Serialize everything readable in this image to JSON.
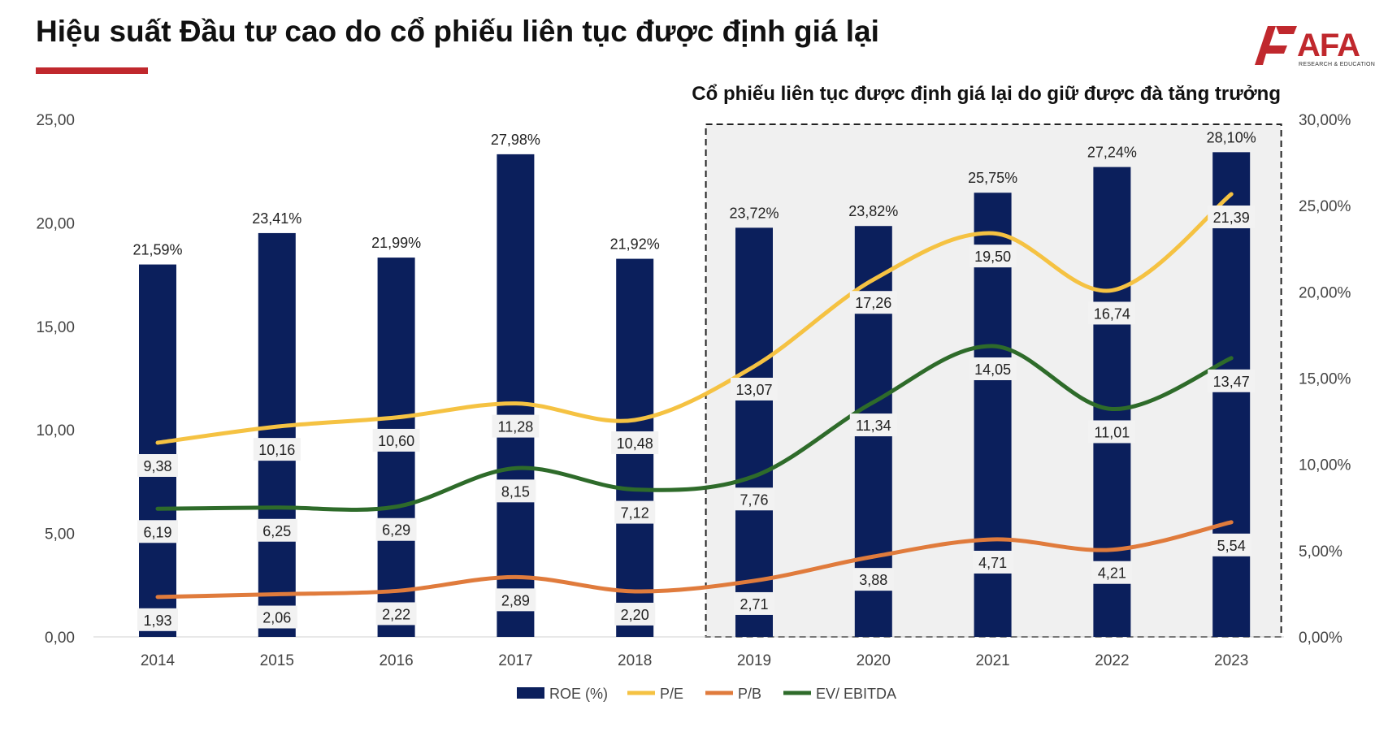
{
  "header": {
    "title": "Hiệu suất Đầu tư cao do cổ phiếu liên tục được định giá lại"
  },
  "logo": {
    "word": "AFA",
    "tagline": "RESEARCH & EDUCATION"
  },
  "colors": {
    "roe": "#0b1f5c",
    "pe": "#f5c242",
    "pb": "#e07b3c",
    "ev_ebitda": "#2e6b2a",
    "brand": "#c0282d",
    "highlight_bg": "#f0f0f0"
  },
  "chart_data": {
    "type": "bar",
    "subtitle": "Cổ phiếu liên tục được định giá lại do giữ được đà tăng trưởng",
    "categories": [
      "2014",
      "2015",
      "2016",
      "2017",
      "2018",
      "2019",
      "2020",
      "2021",
      "2022",
      "2023"
    ],
    "highlight_range": [
      "2019",
      "2023"
    ],
    "y_left": {
      "min": 0,
      "max": 25,
      "ticks": [
        "0,00",
        "5,00",
        "10,00",
        "15,00",
        "20,00",
        "25,00"
      ]
    },
    "y_right": {
      "min": 0,
      "max": 30,
      "ticks": [
        "0,00%",
        "5,00%",
        "10,00%",
        "15,00%",
        "20,00%",
        "25,00%",
        "30,00%"
      ]
    },
    "series": [
      {
        "name": "ROE (%)",
        "kind": "bar",
        "axis": "right",
        "values": [
          21.59,
          23.41,
          21.99,
          27.98,
          21.92,
          23.72,
          23.82,
          25.75,
          27.24,
          28.1
        ],
        "labels": [
          "21,59%",
          "23,41%",
          "21,99%",
          "27,98%",
          "21,92%",
          "23,72%",
          "23,82%",
          "25,75%",
          "27,24%",
          "28,10%"
        ]
      },
      {
        "name": "P/E",
        "kind": "line",
        "axis": "left",
        "values": [
          9.38,
          10.16,
          10.6,
          11.28,
          10.48,
          13.07,
          17.26,
          19.5,
          16.74,
          21.39
        ],
        "labels": [
          "9,38",
          "10,16",
          "10,60",
          "11,28",
          "10,48",
          "13,07",
          "17,26",
          "19,50",
          "16,74",
          "21,39"
        ]
      },
      {
        "name": "P/B",
        "kind": "line",
        "axis": "left",
        "values": [
          1.93,
          2.06,
          2.22,
          2.89,
          2.2,
          2.71,
          3.88,
          4.71,
          4.21,
          5.54
        ],
        "labels": [
          "1,93",
          "2,06",
          "2,22",
          "2,89",
          "2,20",
          "2,71",
          "3,88",
          "4,71",
          "4,21",
          "5,54"
        ]
      },
      {
        "name": "EV/ EBITDA",
        "kind": "line",
        "axis": "left",
        "values": [
          6.19,
          6.25,
          6.29,
          8.15,
          7.12,
          7.76,
          11.34,
          14.05,
          11.01,
          13.47
        ],
        "labels": [
          "6,19",
          "6,25",
          "6,29",
          "8,15",
          "7,12",
          "7,76",
          "11,34",
          "14,05",
          "11,01",
          "13,47"
        ]
      }
    ],
    "legend_position": "bottom",
    "grid": false
  }
}
